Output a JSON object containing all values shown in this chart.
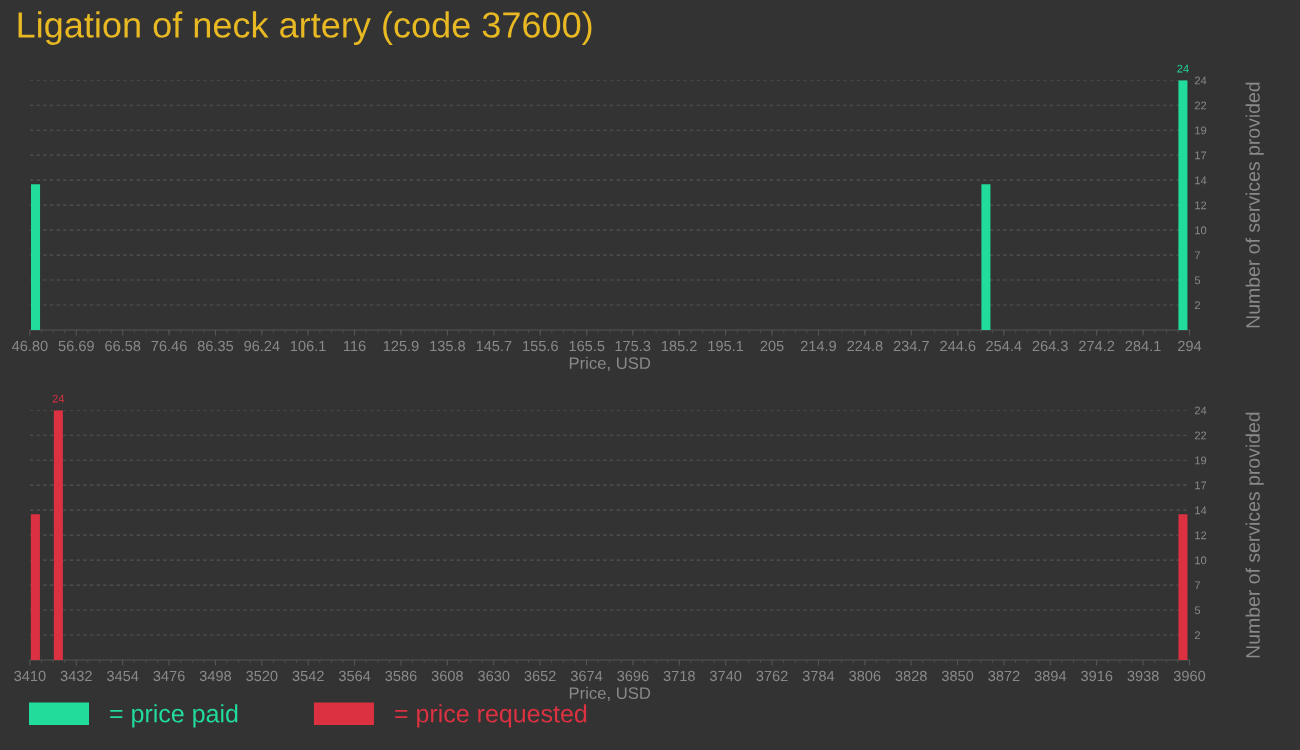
{
  "chart_data": [
    {
      "type": "bar",
      "title": "Ligation of neck artery (code 37600)",
      "xlabel": "Price, USD",
      "ylabel": "Number of services provided",
      "x": [
        48.0,
        250.6,
        292.6
      ],
      "series": [
        {
          "name": "= price paid",
          "color": "#21dc9b",
          "values": [
            14,
            14,
            24
          ],
          "value_labels": [
            null,
            null,
            "24"
          ]
        }
      ],
      "xlim": [
        46.8,
        294
      ],
      "xticks": [
        {
          "value": 46.8,
          "label": "46.80"
        },
        56.69,
        66.58,
        76.46,
        86.35,
        96.24,
        106.1,
        116,
        125.9,
        135.8,
        145.7,
        155.6,
        165.5,
        175.3,
        185.2,
        195.1,
        205,
        214.9,
        224.8,
        234.7,
        244.6,
        254.4,
        264.3,
        274.2,
        284.1,
        294
      ],
      "ylim": [
        0,
        24
      ],
      "yticks": [
        {
          "value": 2.4,
          "label": "2"
        },
        {
          "value": 4.8,
          "label": "5"
        },
        {
          "value": 7.2,
          "label": "7"
        },
        {
          "value": 9.6,
          "label": "10"
        },
        {
          "value": 12,
          "label": "12"
        },
        {
          "value": 14.4,
          "label": "14"
        },
        {
          "value": 16.8,
          "label": "17"
        },
        {
          "value": 19.2,
          "label": "19"
        },
        {
          "value": 21.6,
          "label": "22"
        },
        24
      ],
      "grid": "y",
      "legend": "bottom left"
    },
    {
      "type": "bar",
      "xlabel": "Price, USD",
      "ylabel": "Number of services provided",
      "x": [
        3412.6,
        3423.5,
        3956.9
      ],
      "series": [
        {
          "name": "= price requested",
          "color": "#dc3141",
          "values": [
            14,
            24,
            14
          ],
          "value_labels": [
            null,
            "24",
            null
          ]
        }
      ],
      "xlim": [
        3410,
        3960
      ],
      "xticks": [
        3410,
        3432,
        3454,
        3476,
        3498,
        3520,
        3542,
        3564,
        3586,
        3608,
        3630,
        3652,
        3674,
        3696,
        3718,
        3740,
        3762,
        3784,
        3806,
        3828,
        3850,
        3872,
        3894,
        3916,
        3938,
        3960
      ],
      "ylim": [
        0,
        24
      ],
      "yticks": [
        {
          "value": 2.4,
          "label": "2"
        },
        {
          "value": 4.8,
          "label": "5"
        },
        {
          "value": 7.2,
          "label": "7"
        },
        {
          "value": 9.6,
          "label": "10"
        },
        {
          "value": 12,
          "label": "12"
        },
        {
          "value": 14.4,
          "label": "14"
        },
        {
          "value": 16.8,
          "label": "17"
        },
        {
          "value": 19.2,
          "label": "19"
        },
        {
          "value": 21.6,
          "label": "22"
        },
        24
      ],
      "grid": "y",
      "legend": "bottom left"
    }
  ]
}
